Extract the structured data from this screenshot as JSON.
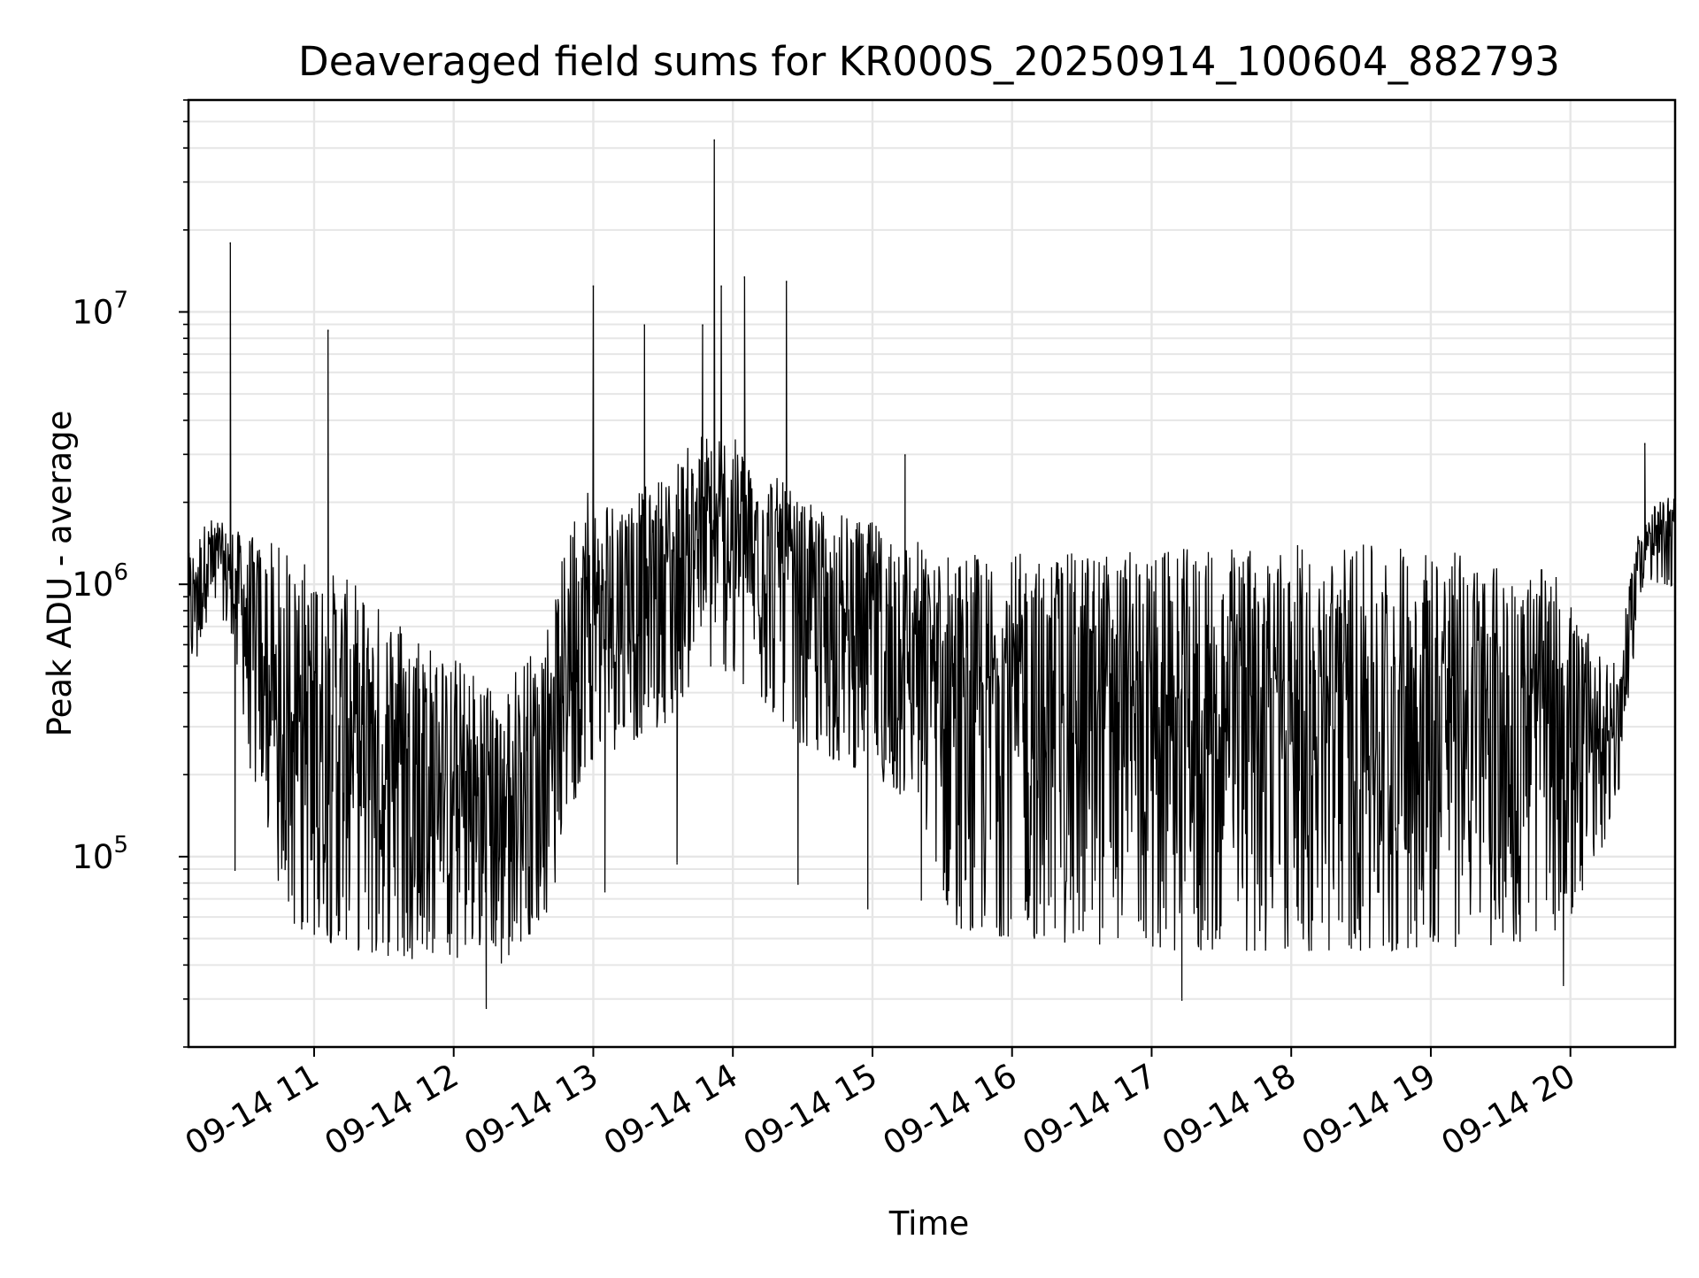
{
  "chart_data": {
    "type": "line",
    "title": "Deaveraged field sums for KR000S_20250914_100604_882793",
    "xlabel": "Time",
    "ylabel": "Peak ADU - average",
    "y_scale": "log",
    "ylim": [
      20000,
      60000000
    ],
    "xlim": [
      "2025-09-14 10:06",
      "2025-09-14 20:45"
    ],
    "grid": true,
    "line_color": "#000000",
    "grid_color": "#e6e6e6",
    "x_ticks": [
      {
        "t": "2025-09-14 11:00",
        "label": "09-14 11"
      },
      {
        "t": "2025-09-14 12:00",
        "label": "09-14 12"
      },
      {
        "t": "2025-09-14 13:00",
        "label": "09-14 13"
      },
      {
        "t": "2025-09-14 14:00",
        "label": "09-14 14"
      },
      {
        "t": "2025-09-14 15:00",
        "label": "09-14 15"
      },
      {
        "t": "2025-09-14 16:00",
        "label": "09-14 16"
      },
      {
        "t": "2025-09-14 17:00",
        "label": "09-14 17"
      },
      {
        "t": "2025-09-14 18:00",
        "label": "09-14 18"
      },
      {
        "t": "2025-09-14 19:00",
        "label": "09-14 19"
      },
      {
        "t": "2025-09-14 20:00",
        "label": "09-14 20"
      }
    ],
    "y_ticks": [
      {
        "value": 100000,
        "base": "10",
        "exp": "5"
      },
      {
        "value": 1000000,
        "base": "10",
        "exp": "6"
      },
      {
        "value": 10000000,
        "base": "10",
        "exp": "7"
      }
    ],
    "envelope": [
      {
        "t": "2025-09-14 10:06",
        "low": 400000,
        "high": 1300000
      },
      {
        "t": "2025-09-14 10:15",
        "low": 800000,
        "high": 1800000
      },
      {
        "t": "2025-09-14 10:25",
        "low": 600000,
        "high": 1600000
      },
      {
        "t": "2025-09-14 10:35",
        "low": 150000,
        "high": 1500000
      },
      {
        "t": "2025-09-14 10:45",
        "low": 60000,
        "high": 1400000
      },
      {
        "t": "2025-09-14 11:00",
        "low": 50000,
        "high": 1200000
      },
      {
        "t": "2025-09-14 11:20",
        "low": 45000,
        "high": 1000000
      },
      {
        "t": "2025-09-14 11:40",
        "low": 42000,
        "high": 750000
      },
      {
        "t": "2025-09-14 12:00",
        "low": 42000,
        "high": 550000
      },
      {
        "t": "2025-09-14 12:20",
        "low": 40000,
        "high": 420000
      },
      {
        "t": "2025-09-14 12:40",
        "low": 60000,
        "high": 700000
      },
      {
        "t": "2025-09-14 12:55",
        "low": 200000,
        "high": 2500000
      },
      {
        "t": "2025-09-14 13:10",
        "low": 250000,
        "high": 2000000
      },
      {
        "t": "2025-09-14 13:30",
        "low": 300000,
        "high": 2500000
      },
      {
        "t": "2025-09-14 13:50",
        "low": 500000,
        "high": 4000000
      },
      {
        "t": "2025-09-14 14:10",
        "low": 400000,
        "high": 3000000
      },
      {
        "t": "2025-09-14 14:30",
        "low": 250000,
        "high": 2000000
      },
      {
        "t": "2025-09-14 15:00",
        "low": 200000,
        "high": 1700000
      },
      {
        "t": "2025-09-14 15:20",
        "low": 150000,
        "high": 1500000
      },
      {
        "t": "2025-09-14 15:35",
        "low": 55000,
        "high": 1300000
      },
      {
        "t": "2025-09-14 16:00",
        "low": 50000,
        "high": 1300000
      },
      {
        "t": "2025-09-14 17:00",
        "low": 45000,
        "high": 1350000
      },
      {
        "t": "2025-09-14 18:00",
        "low": 45000,
        "high": 1400000
      },
      {
        "t": "2025-09-14 19:00",
        "low": 45000,
        "high": 1400000
      },
      {
        "t": "2025-09-14 19:55",
        "low": 50000,
        "high": 1100000
      },
      {
        "t": "2025-09-14 20:05",
        "low": 70000,
        "high": 700000
      },
      {
        "t": "2025-09-14 20:20",
        "low": 150000,
        "high": 500000
      },
      {
        "t": "2025-09-14 20:30",
        "low": 900000,
        "high": 1800000
      },
      {
        "t": "2025-09-14 20:45",
        "low": 1000000,
        "high": 2200000
      }
    ],
    "spikes": [
      {
        "t": "2025-09-14 10:24",
        "value": 18000000
      },
      {
        "t": "2025-09-14 10:26",
        "value": 90000
      },
      {
        "t": "2025-09-14 11:06",
        "value": 8600000
      },
      {
        "t": "2025-09-14 12:14",
        "value": 28000
      },
      {
        "t": "2025-09-14 13:00",
        "value": 12500000
      },
      {
        "t": "2025-09-14 13:05",
        "value": 75000
      },
      {
        "t": "2025-09-14 13:22",
        "value": 9000000
      },
      {
        "t": "2025-09-14 13:36",
        "value": 95000
      },
      {
        "t": "2025-09-14 13:47",
        "value": 9000000
      },
      {
        "t": "2025-09-14 13:52",
        "value": 43000000
      },
      {
        "t": "2025-09-14 13:55",
        "value": 12500000
      },
      {
        "t": "2025-09-14 14:05",
        "value": 13500000
      },
      {
        "t": "2025-09-14 14:23",
        "value": 13000000
      },
      {
        "t": "2025-09-14 14:28",
        "value": 80000
      },
      {
        "t": "2025-09-14 14:58",
        "value": 65000
      },
      {
        "t": "2025-09-14 15:14",
        "value": 3000000
      },
      {
        "t": "2025-09-14 15:21",
        "value": 70000
      },
      {
        "t": "2025-09-14 17:13",
        "value": 30000
      },
      {
        "t": "2025-09-14 19:57",
        "value": 34000
      },
      {
        "t": "2025-09-14 20:32",
        "value": 3300000
      }
    ]
  }
}
